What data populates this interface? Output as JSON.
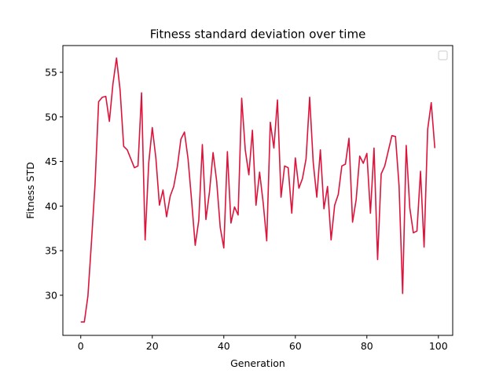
{
  "chart_data": {
    "type": "line",
    "title": "Fitness standard deviation over time",
    "xlabel": "Generation",
    "ylabel": "Fitness STD",
    "xlim": [
      -5,
      104
    ],
    "ylim": [
      25.5,
      58
    ],
    "xticks": [
      0,
      20,
      40,
      60,
      80,
      100
    ],
    "yticks": [
      30,
      35,
      40,
      45,
      50,
      55
    ],
    "grid": false,
    "legend": {
      "placement": "top-right",
      "entries": []
    },
    "series": [
      {
        "color": "#dc143c",
        "x": [
          0,
          1,
          2,
          3,
          4,
          5,
          6,
          7,
          8,
          9,
          10,
          11,
          12,
          13,
          14,
          15,
          16,
          17,
          18,
          19,
          20,
          21,
          22,
          23,
          24,
          25,
          26,
          27,
          28,
          29,
          30,
          31,
          32,
          33,
          34,
          35,
          36,
          37,
          38,
          39,
          40,
          41,
          42,
          43,
          44,
          45,
          46,
          47,
          48,
          49,
          50,
          51,
          52,
          53,
          54,
          55,
          56,
          57,
          58,
          59,
          60,
          61,
          62,
          63,
          64,
          65,
          66,
          67,
          68,
          69,
          70,
          71,
          72,
          73,
          74,
          75,
          76,
          77,
          78,
          79,
          80,
          81,
          82,
          83,
          84,
          85,
          86,
          87,
          88,
          89,
          90,
          91,
          92,
          93,
          94,
          95,
          96,
          97,
          98,
          99
        ],
        "values": [
          27.0,
          27.0,
          29.9,
          36.0,
          42.5,
          51.7,
          52.2,
          52.3,
          49.5,
          53.7,
          56.6,
          53.0,
          46.7,
          46.3,
          45.3,
          44.3,
          44.5,
          52.7,
          36.2,
          44.8,
          48.8,
          45.4,
          40.1,
          41.8,
          38.8,
          41.1,
          42.2,
          44.4,
          47.5,
          48.3,
          45.3,
          40.6,
          35.6,
          38.4,
          46.9,
          38.5,
          41.6,
          46.0,
          42.8,
          37.6,
          35.3,
          46.1,
          38.1,
          39.9,
          39.0,
          52.1,
          46.3,
          43.5,
          48.5,
          40.1,
          43.8,
          40.4,
          36.1,
          49.4,
          46.5,
          51.9,
          41.0,
          44.5,
          44.3,
          39.2,
          45.4,
          42.0,
          43.1,
          45.3,
          52.2,
          44.9,
          41.0,
          46.3,
          39.7,
          42.2,
          36.2,
          40.1,
          41.3,
          44.5,
          44.7,
          47.6,
          38.2,
          40.7,
          45.6,
          44.8,
          45.9,
          39.2,
          46.5,
          34.0,
          43.6,
          44.5,
          46.2,
          47.9,
          47.8,
          42.3,
          30.2,
          46.8,
          39.8,
          37.0,
          37.2,
          43.9,
          35.4,
          48.6,
          51.6,
          46.5
        ]
      }
    ]
  }
}
